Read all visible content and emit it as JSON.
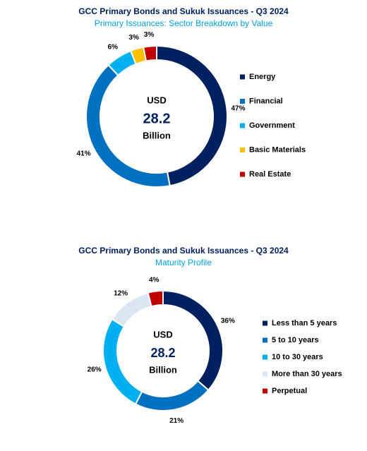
{
  "chart_data": [
    {
      "type": "doughnut",
      "title": "GCC Primary Bonds and Sukuk Issuances - Q3 2024",
      "subtitle": "Primary Issuances: Sector Breakdown by Value",
      "center": {
        "top": "USD",
        "value": 28.2,
        "bottom": "Billion"
      },
      "categories": [
        "Energy",
        "Financial",
        "Government",
        "Basic Materials",
        "Real Estate"
      ],
      "values": [
        47,
        41,
        6,
        3,
        3
      ],
      "value_labels": [
        "47%",
        "41%",
        "6%",
        "3%",
        "3%"
      ],
      "colors": [
        "#002060",
        "#0070c0",
        "#00b0f0",
        "#ffc000",
        "#c00000"
      ],
      "legend": "right"
    },
    {
      "type": "doughnut",
      "title": "GCC Primary Bonds and Sukuk Issuances - Q3 2024",
      "subtitle": "Maturity Profile",
      "center": {
        "top": "USD",
        "value": 28.2,
        "bottom": "Billion"
      },
      "categories": [
        "Less than 5 years",
        "5 to 10 years",
        "10 to 30 years",
        "More than 30 years",
        "Perpetual"
      ],
      "values": [
        36,
        21,
        26,
        12,
        4
      ],
      "value_labels": [
        "36%",
        "21%",
        "26%",
        "12%",
        "4%"
      ],
      "colors": [
        "#002060",
        "#0070c0",
        "#00b0f0",
        "#dce6f2",
        "#c00000"
      ],
      "legend": "right"
    }
  ]
}
